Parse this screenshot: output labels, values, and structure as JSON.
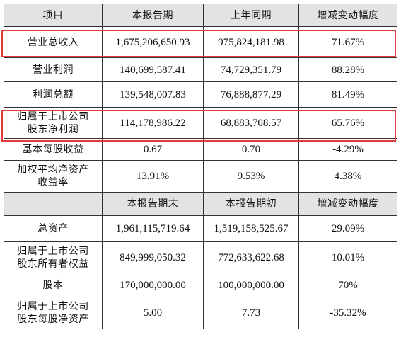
{
  "header1": [
    "项目",
    "本报告期",
    "上年同期",
    "增减变动幅度"
  ],
  "rows1": [
    {
      "label": [
        "营业总收入"
      ],
      "cur": "1,675,206,650.93",
      "prev": "975,824,181.98",
      "chg": "71.67%"
    },
    {
      "label": [
        "营业利润"
      ],
      "cur": "140,699,587.41",
      "prev": "74,729,351.79",
      "chg": "88.28%"
    },
    {
      "label": [
        "利润总额"
      ],
      "cur": "139,548,007.83",
      "prev": "76,888,877.29",
      "chg": "81.49%"
    },
    {
      "label": [
        "归属于上市公司",
        "股东净利润"
      ],
      "cur": "114,178,986.22",
      "prev": "68,883,708.57",
      "chg": "65.76%"
    },
    {
      "label": [
        "基本每股收益"
      ],
      "cur": "0.67",
      "prev": "0.70",
      "chg": "-4.29%"
    },
    {
      "label": [
        "加权平均净资产",
        "收益率"
      ],
      "cur": "13.91%",
      "prev": "9.53%",
      "chg": "4.38%"
    }
  ],
  "header2": [
    "",
    "本报告期末",
    "本报告期初",
    "增减变动幅度"
  ],
  "rows2": [
    {
      "label": [
        "总资产"
      ],
      "cur": "1,961,115,719.64",
      "prev": "1,519,158,525.67",
      "chg": "29.09%"
    },
    {
      "label": [
        "归属于上市公司",
        "股东所有者权益"
      ],
      "cur": "849,999,050.32",
      "prev": "772,633,622.68",
      "chg": "10.01%"
    },
    {
      "label": [
        "股本"
      ],
      "cur": "170,000,000.00",
      "prev": "100,000,000.00",
      "chg": "70%"
    },
    {
      "label": [
        "归属于上市公司",
        "股东每股净资产"
      ],
      "cur": "5.00",
      "prev": "7.73",
      "chg": "-35.32%"
    }
  ],
  "highlight_color": "#e23b3b",
  "header_bg": "#e3e3e3"
}
